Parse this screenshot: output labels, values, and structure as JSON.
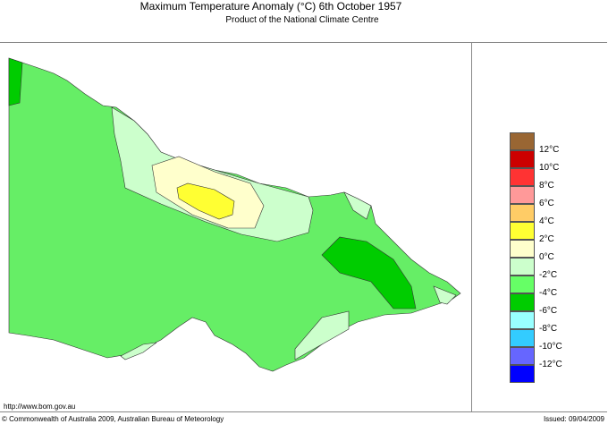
{
  "header": {
    "title": "Maximum Temperature Anomaly (°C)  6th October 1957",
    "subtitle": "Product of the National Climate Centre"
  },
  "footer": {
    "url": "http://www.bom.gov.au",
    "copyright": "© Commonwealth of Australia 2009, Australian Bureau of Meteorology",
    "issued": "Issued: 09/04/2009"
  },
  "legend": {
    "colors": [
      "#996633",
      "#cc0000",
      "#ff3333",
      "#ff9999",
      "#ffcc66",
      "#ffff33",
      "#ffffcc",
      "#ccffcc",
      "#66ff66",
      "#00cc00",
      "#99ffff",
      "#33ccff",
      "#6666ff",
      "#0000ff"
    ],
    "labels": [
      "12°C",
      "10°C",
      "8°C",
      "6°C",
      "4°C",
      "2°C",
      "0°C",
      "-2°C",
      "-4°C",
      "-6°C",
      "-8°C",
      "-10°C",
      "-12°C"
    ]
  },
  "map_colors": {
    "land_base": "#66ee66",
    "dark": "#00cc00",
    "light": "#ccffcc",
    "pale_yellow": "#ffffcc",
    "yellow": "#ffff33"
  }
}
